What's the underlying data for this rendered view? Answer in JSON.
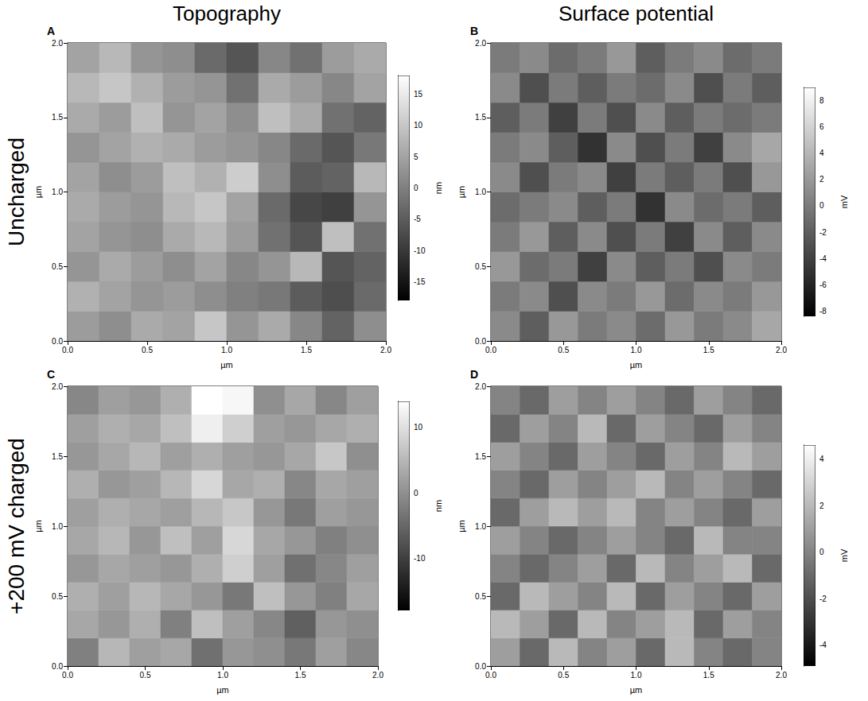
{
  "column_titles": [
    "Topography",
    "Surface potential"
  ],
  "row_titles": [
    "Uncharged",
    "+200 mV charged"
  ],
  "chart_data": [
    {
      "type": "heatmap",
      "title": "A",
      "xlabel": "µm",
      "ylabel": "µm",
      "xlim": [
        0,
        2
      ],
      "ylim": [
        0,
        2
      ],
      "xticks": [
        {
          "value": 0,
          "label": "0.0"
        },
        {
          "value": 0.5,
          "label": "0.5"
        },
        {
          "value": 1,
          "label": "1.0"
        },
        {
          "value": 1.5,
          "label": "1.5"
        },
        {
          "value": 2,
          "label": "2.0"
        }
      ],
      "yticks": [
        {
          "value": 0,
          "label": "0.0"
        },
        {
          "value": 0.5,
          "label": "0.5"
        },
        {
          "value": 1,
          "label": "1.0"
        },
        {
          "value": 1.5,
          "label": "1.5"
        },
        {
          "value": 2,
          "label": "2.0"
        }
      ],
      "x": [
        0.1,
        0.3,
        0.5,
        0.7,
        0.9,
        1.1,
        1.3,
        1.5,
        1.7,
        1.9
      ],
      "y": [
        0.1,
        0.3,
        0.5,
        0.7,
        0.9,
        1.1,
        1.3,
        1.5,
        1.7,
        1.9
      ],
      "z": [
        [
          4,
          2,
          6,
          5,
          10,
          3,
          6,
          1,
          -4,
          2
        ],
        [
          7,
          5,
          3,
          4,
          2,
          0,
          -1,
          -5,
          -7,
          -3
        ],
        [
          3,
          6,
          4,
          2,
          5,
          1,
          3,
          8,
          -6,
          -4
        ],
        [
          5,
          3,
          2,
          6,
          8,
          4,
          -2,
          -6,
          9,
          -2
        ],
        [
          6,
          4,
          3,
          8,
          10,
          5,
          -3,
          -8,
          -9,
          3
        ],
        [
          5,
          2,
          4,
          9,
          7,
          11,
          2,
          -5,
          -4,
          8
        ],
        [
          3,
          5,
          7,
          6,
          4,
          3,
          1,
          -3,
          -6,
          -1
        ],
        [
          6,
          4,
          9,
          3,
          5,
          2,
          9,
          6,
          -2,
          -4
        ],
        [
          8,
          10,
          7,
          4,
          3,
          -2,
          6,
          4,
          1,
          5
        ],
        [
          5,
          8,
          3,
          2,
          -3,
          -6,
          1,
          -2,
          4,
          6
        ]
      ],
      "zlabel": "nm",
      "zlim": [
        -18,
        18
      ],
      "zticks": [
        15,
        10,
        5,
        0,
        -5,
        -10,
        -15
      ]
    },
    {
      "type": "heatmap",
      "title": "B",
      "xlabel": "µm",
      "ylabel": "µm",
      "xlim": [
        0,
        2
      ],
      "ylim": [
        0,
        2
      ],
      "xticks": [
        {
          "value": 0,
          "label": "0.0"
        },
        {
          "value": 0.5,
          "label": "0.5"
        },
        {
          "value": 1,
          "label": "1.0"
        },
        {
          "value": 1.5,
          "label": "1.5"
        },
        {
          "value": 2,
          "label": "2.0"
        }
      ],
      "yticks": [
        {
          "value": 0,
          "label": "0.0"
        },
        {
          "value": 0.5,
          "label": "0.5"
        },
        {
          "value": 1,
          "label": "1.0"
        },
        {
          "value": 1.5,
          "label": "1.5"
        },
        {
          "value": 2,
          "label": "2.0"
        }
      ],
      "x": [
        0.1,
        0.3,
        0.5,
        0.7,
        0.9,
        1.1,
        1.3,
        1.5,
        1.7,
        1.9
      ],
      "y": [
        0.1,
        0.3,
        0.5,
        0.7,
        0.9,
        1.1,
        1.3,
        1.5,
        1.7,
        1.9
      ],
      "z": [
        [
          1,
          -2,
          2,
          0,
          1,
          -1,
          2,
          0,
          1,
          3
        ],
        [
          0,
          1,
          -3,
          1,
          0,
          2,
          -1,
          1,
          0,
          2
        ],
        [
          2,
          -1,
          0,
          -4,
          1,
          -2,
          0,
          -3,
          1,
          0
        ],
        [
          0,
          2,
          -2,
          1,
          -3,
          0,
          -4,
          1,
          -2,
          1
        ],
        [
          -1,
          0,
          1,
          -2,
          0,
          -5,
          1,
          -1,
          0,
          -2
        ],
        [
          1,
          -3,
          0,
          1,
          -4,
          0,
          -2,
          0,
          -3,
          2
        ],
        [
          0,
          1,
          -2,
          -5,
          1,
          -3,
          0,
          -4,
          1,
          3
        ],
        [
          -2,
          0,
          -4,
          0,
          -3,
          1,
          -2,
          0,
          -1,
          0
        ],
        [
          1,
          -3,
          0,
          -2,
          0,
          -1,
          1,
          -3,
          0,
          -2
        ],
        [
          0,
          1,
          -1,
          0,
          2,
          -2,
          0,
          1,
          -1,
          0
        ]
      ],
      "zlabel": "mV",
      "zlim": [
        -8.4,
        9
      ],
      "zticks": [
        8,
        6,
        4,
        2,
        0,
        -2,
        -4,
        -6,
        -8
      ]
    },
    {
      "type": "heatmap",
      "title": "C",
      "xlabel": "µm",
      "ylabel": "µm",
      "xlim": [
        0,
        2
      ],
      "ylim": [
        0,
        2
      ],
      "xticks": [
        {
          "value": 0,
          "label": "0.0"
        },
        {
          "value": 0.5,
          "label": "0.5"
        },
        {
          "value": 1,
          "label": "1.0"
        },
        {
          "value": 1.5,
          "label": "1.5"
        },
        {
          "value": 2,
          "label": "2.0"
        }
      ],
      "yticks": [
        {
          "value": 0,
          "label": "0.0"
        },
        {
          "value": 0.5,
          "label": "0.5"
        },
        {
          "value": 1,
          "label": "1.0"
        },
        {
          "value": 1.5,
          "label": "1.5"
        },
        {
          "value": 2,
          "label": "2.0"
        }
      ],
      "x": [
        0.1,
        0.3,
        0.5,
        0.7,
        0.9,
        1.1,
        1.3,
        1.5,
        1.7,
        1.9
      ],
      "y": [
        0.1,
        0.3,
        0.5,
        0.7,
        0.9,
        1.1,
        1.3,
        1.5,
        1.7,
        1.9
      ],
      "z": [
        [
          -2,
          5,
          2,
          3,
          -4,
          1,
          0,
          -3,
          2,
          -1
        ],
        [
          3,
          1,
          4,
          -2,
          6,
          2,
          -1,
          -6,
          1,
          0
        ],
        [
          4,
          2,
          5,
          3,
          1,
          -3,
          6,
          1,
          -2,
          3
        ],
        [
          1,
          3,
          2,
          1,
          4,
          8,
          2,
          -4,
          -1,
          2
        ],
        [
          3,
          5,
          1,
          6,
          2,
          9,
          3,
          1,
          -2,
          0
        ],
        [
          2,
          4,
          3,
          2,
          5,
          7,
          1,
          -3,
          2,
          1
        ],
        [
          4,
          1,
          2,
          5,
          9,
          3,
          4,
          -1,
          3,
          2
        ],
        [
          1,
          3,
          5,
          2,
          4,
          2,
          1,
          3,
          7,
          0
        ],
        [
          2,
          4,
          3,
          6,
          12,
          8,
          2,
          1,
          3,
          4
        ],
        [
          -1,
          2,
          1,
          4,
          14,
          13,
          0,
          3,
          -1,
          2
        ]
      ],
      "zlabel": "nm",
      "zlim": [
        -18,
        14
      ],
      "zticks": [
        10,
        0,
        -10
      ]
    },
    {
      "type": "heatmap",
      "title": "D",
      "xlabel": "µm",
      "ylabel": "µm",
      "xlim": [
        0,
        2
      ],
      "ylim": [
        0,
        2
      ],
      "xticks": [
        {
          "value": 0,
          "label": "0.0"
        },
        {
          "value": 0.5,
          "label": "0.5"
        },
        {
          "value": 1,
          "label": "1.0"
        },
        {
          "value": 1.5,
          "label": "1.5"
        },
        {
          "value": 2,
          "label": "2.0"
        }
      ],
      "yticks": [
        {
          "value": 0,
          "label": "0.0"
        },
        {
          "value": 0.5,
          "label": "0.5"
        },
        {
          "value": 1,
          "label": "1.0"
        },
        {
          "value": 1.5,
          "label": "1.5"
        },
        {
          "value": 2,
          "label": "2.0"
        }
      ],
      "x": [
        0.1,
        0.3,
        0.5,
        0.7,
        0.9,
        1.1,
        1.3,
        1.5,
        1.7,
        1.9
      ],
      "y": [
        0.1,
        0.3,
        0.5,
        0.7,
        0.9,
        1.1,
        1.3,
        1.5,
        1.7,
        1.9
      ],
      "z": [
        [
          1,
          -1,
          2,
          0,
          1,
          -1,
          2,
          0,
          -1,
          0
        ],
        [
          2,
          1,
          -1,
          2,
          0,
          1,
          2,
          -1,
          1,
          0
        ],
        [
          -1,
          2,
          1,
          0,
          2,
          -1,
          1,
          0,
          -1,
          1
        ],
        [
          0,
          -1,
          0,
          1,
          -1,
          2,
          0,
          1,
          2,
          -1
        ],
        [
          1,
          0,
          -1,
          0,
          1,
          0,
          -1,
          2,
          0,
          0
        ],
        [
          -1,
          1,
          2,
          1,
          2,
          0,
          1,
          0,
          -1,
          1
        ],
        [
          0,
          -1,
          1,
          0,
          1,
          2,
          0,
          1,
          0,
          -1
        ],
        [
          1,
          0,
          -1,
          1,
          0,
          -1,
          1,
          0,
          2,
          1
        ],
        [
          -1,
          1,
          0,
          2,
          -1,
          1,
          0,
          -1,
          1,
          0
        ],
        [
          0,
          -1,
          1,
          0,
          1,
          0,
          -1,
          1,
          0,
          -1
        ]
      ],
      "zlabel": "mV",
      "zlim": [
        -4.9,
        4.6
      ],
      "zticks": [
        4,
        2,
        0,
        -2,
        -4
      ]
    }
  ]
}
